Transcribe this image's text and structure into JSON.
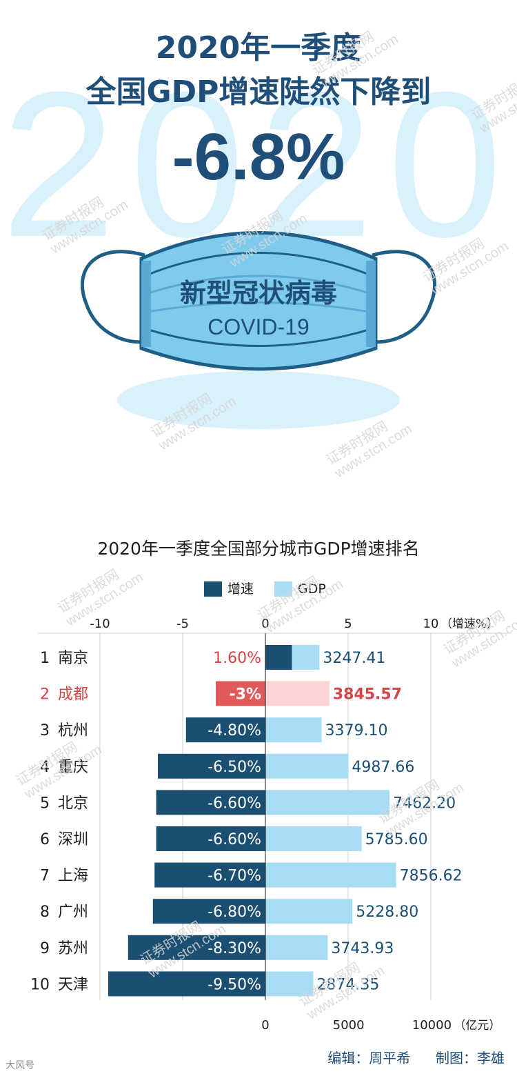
{
  "hero": {
    "year_background": "2020",
    "line1": "2020年一季度",
    "line2": "全国GDP增速陡然下降到",
    "value": "-6.8%"
  },
  "mask": {
    "title": "新型冠状病毒",
    "subtitle": "COVID-19"
  },
  "watermark": {
    "cn": "证券时报网",
    "url": "www.stcn.com"
  },
  "legend": {
    "growth_label": "增速",
    "gdp_label": "GDP"
  },
  "chart_data": {
    "type": "bar",
    "title": "2020年一季度全国部分城市GDP增速排名",
    "top_axis": {
      "ticks": [
        "-10",
        "-5",
        "0",
        "5",
        "10"
      ],
      "values": [
        -10,
        -5,
        0,
        5,
        10
      ],
      "unit_label": "（增速%）",
      "range": [
        -10,
        10
      ]
    },
    "bottom_axis": {
      "ticks": [
        "0",
        "5000",
        "10000"
      ],
      "values": [
        0,
        5000,
        10000
      ],
      "unit_label": "（亿元）",
      "range": [
        0,
        10000
      ]
    },
    "series": [
      {
        "name": "增速",
        "values": [
          1.6,
          -3,
          -4.8,
          -6.5,
          -6.6,
          -6.6,
          -6.7,
          -6.8,
          -8.3,
          -9.5
        ]
      },
      {
        "name": "GDP",
        "values": [
          3247.41,
          3845.57,
          3379.1,
          4987.66,
          7462.2,
          5785.6,
          7856.62,
          5228.8,
          3743.93,
          2874.35
        ]
      }
    ],
    "rows": [
      {
        "rank": "1",
        "city": "南京",
        "growth_label": "1.60%",
        "gdp_label": "3247.41",
        "highlight": false
      },
      {
        "rank": "2",
        "city": "成都",
        "growth_label": "-3%",
        "gdp_label": "3845.57",
        "highlight": true
      },
      {
        "rank": "3",
        "city": "杭州",
        "growth_label": "-4.80%",
        "gdp_label": "3379.10",
        "highlight": false
      },
      {
        "rank": "4",
        "city": "重庆",
        "growth_label": "-6.50%",
        "gdp_label": "4987.66",
        "highlight": false
      },
      {
        "rank": "5",
        "city": "北京",
        "growth_label": "-6.60%",
        "gdp_label": "7462.20",
        "highlight": false
      },
      {
        "rank": "6",
        "city": "深圳",
        "growth_label": "-6.60%",
        "gdp_label": "5785.60",
        "highlight": false
      },
      {
        "rank": "7",
        "city": "上海",
        "growth_label": "-6.70%",
        "gdp_label": "7856.62",
        "highlight": false
      },
      {
        "rank": "8",
        "city": "广州",
        "growth_label": "-6.80%",
        "gdp_label": "5228.80",
        "highlight": false
      },
      {
        "rank": "9",
        "city": "苏州",
        "growth_label": "-8.30%",
        "gdp_label": "3743.93",
        "highlight": false
      },
      {
        "rank": "10",
        "city": "天津",
        "growth_label": "-9.50%",
        "gdp_label": "2874.35",
        "highlight": false
      }
    ],
    "colors": {
      "growth": "#1b4f72",
      "gdp": "#a8dcf5",
      "highlight_growth": "#e05a5a",
      "highlight_gdp": "#fbd3d3",
      "highlight_text": "#d64545",
      "gdp_text": "#1b4f72",
      "grid": "#cfcfcf"
    }
  },
  "footer": {
    "editor": "编辑：周平希",
    "designer": "制图：李雄",
    "logo_text": "大风号"
  }
}
